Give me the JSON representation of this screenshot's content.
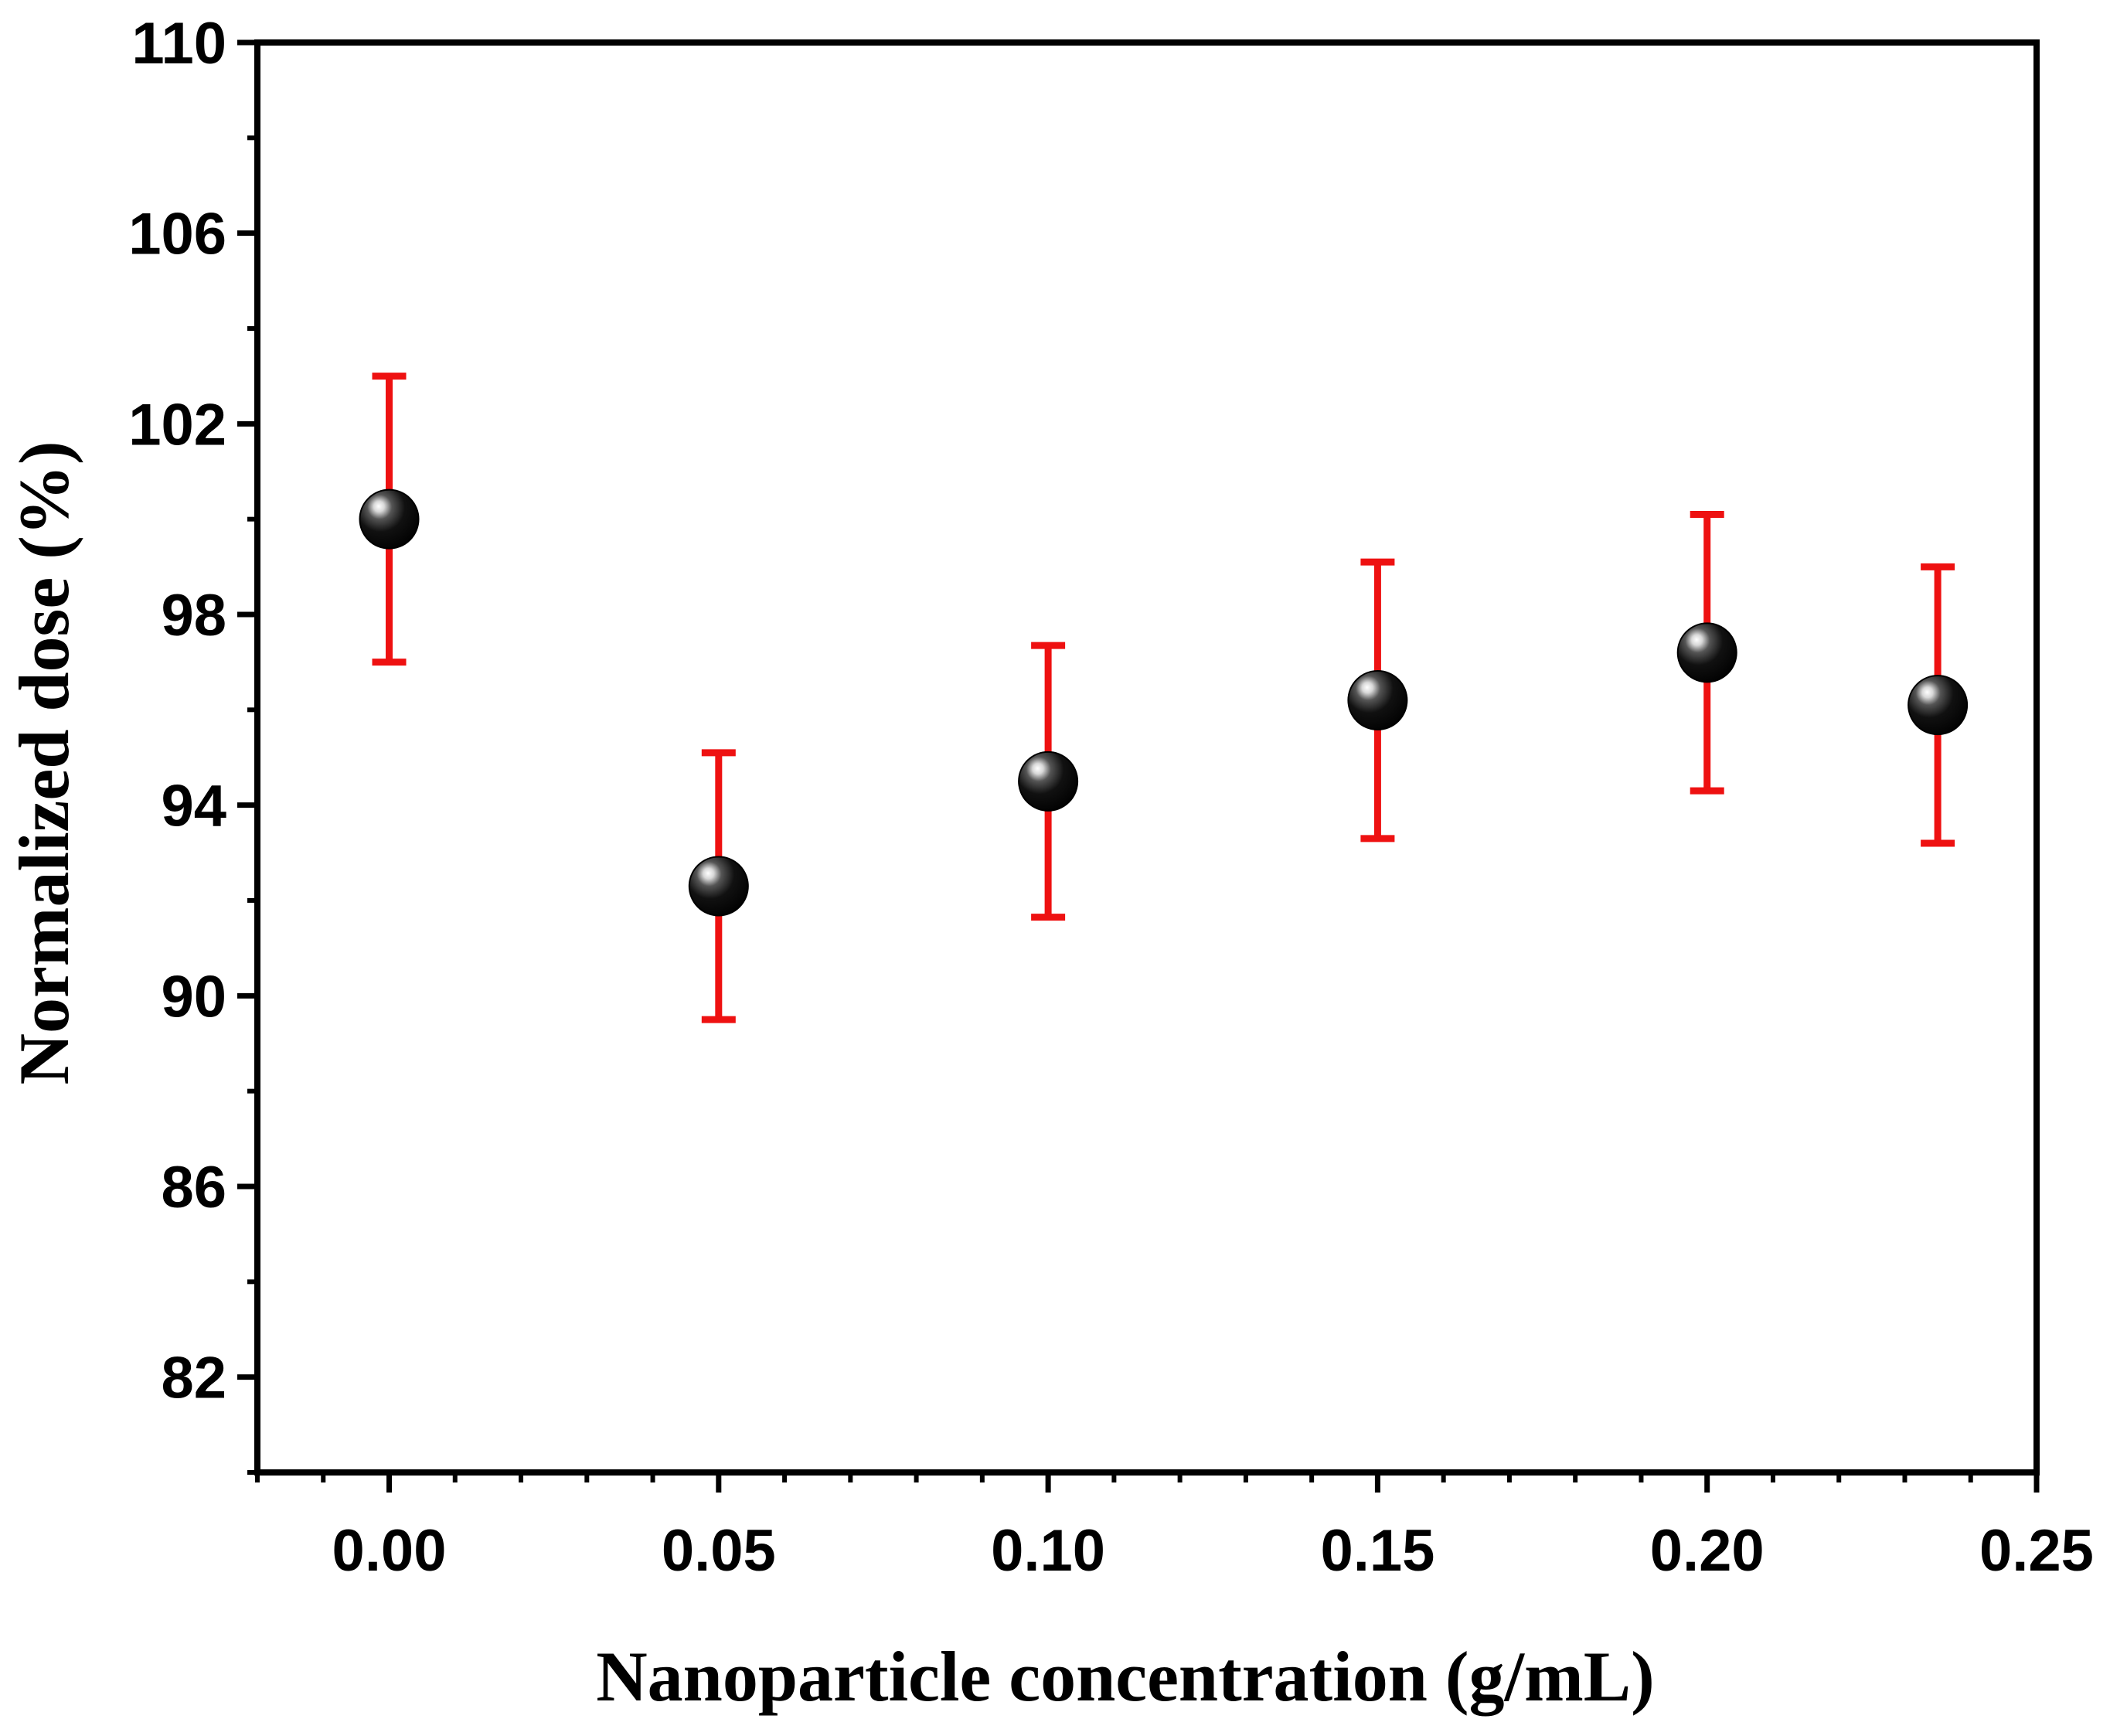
{
  "chart_data": {
    "type": "scatter",
    "title": "",
    "xlabel": "Nanoparticle concentration (g/mL)",
    "ylabel": "Normalized dose (%)",
    "xlim": [
      -0.02,
      0.25
    ],
    "ylim": [
      80,
      110
    ],
    "x_ticks": [
      "0.00",
      "0.05",
      "0.10",
      "0.15",
      "0.20",
      "0.25"
    ],
    "y_ticks": [
      "82",
      "86",
      "90",
      "94",
      "98",
      "102",
      "106",
      "110"
    ],
    "x_tick_values": [
      0.0,
      0.05,
      0.1,
      0.15,
      0.2,
      0.25
    ],
    "y_tick_values": [
      82,
      86,
      90,
      94,
      98,
      102,
      106,
      110
    ],
    "series": [
      {
        "name": "Normalized dose",
        "x": [
          0.0,
          0.05,
          0.1,
          0.15,
          0.2,
          0.235
        ],
        "y": [
          100.0,
          92.3,
          94.5,
          96.2,
          97.2,
          96.1
        ],
        "error": [
          3.0,
          2.8,
          2.85,
          2.9,
          2.9,
          2.9
        ],
        "marker_color": "#000000",
        "errorbar_color": "#ee1111"
      }
    ],
    "grid": false,
    "legend": "none"
  }
}
